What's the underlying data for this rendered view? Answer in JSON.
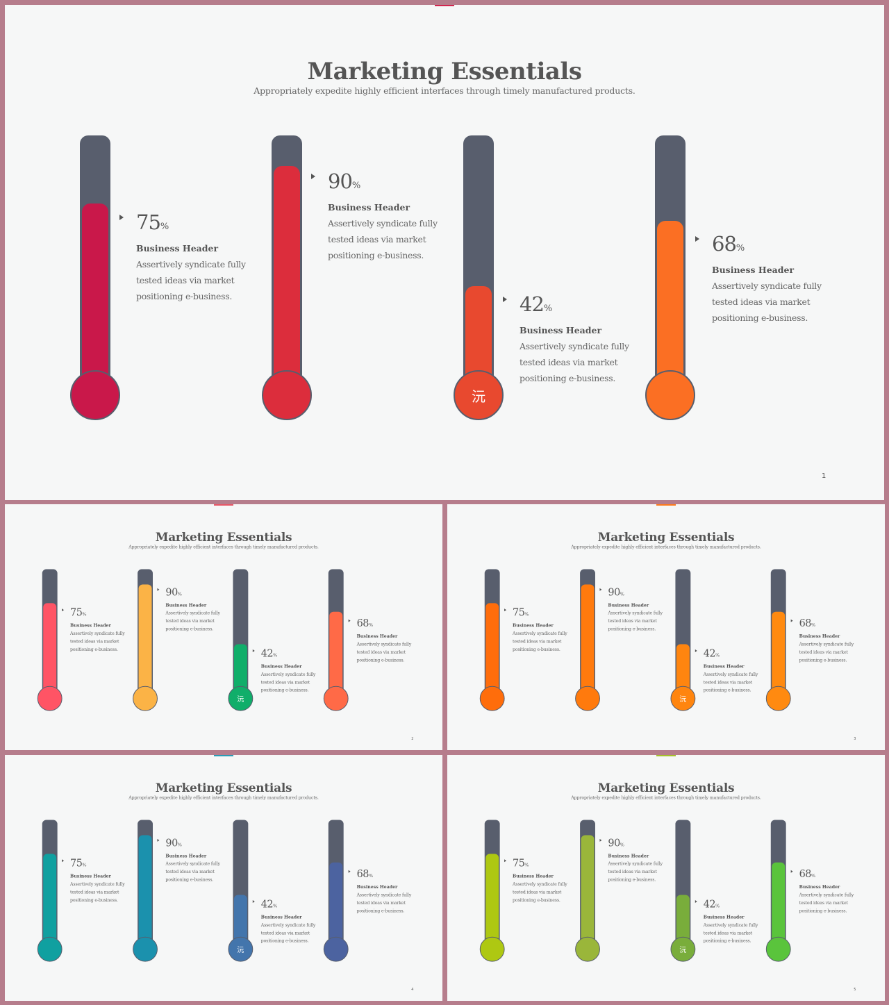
{
  "title": "Marketing Essentials",
  "subtitle": "Appropriately expedite highly efficient interfaces through timely manufactured products.",
  "items": [
    {
      "percent": "75",
      "unit": "%",
      "header": "Business Header",
      "description": "Assertively syndicate fully tested ideas via market positioning e-business.",
      "level": 0.75
    },
    {
      "percent": "90",
      "unit": "%",
      "header": "Business Header",
      "description": "Assertively syndicate fully tested ideas via market positioning e-business.",
      "level": 0.9
    },
    {
      "percent": "42",
      "unit": "%",
      "header": "Business Header",
      "description": "Assertively syndicate fully tested ideas via market positioning e-business.",
      "level": 0.42,
      "bulb_text": "沅"
    },
    {
      "percent": "68",
      "unit": "%",
      "header": "Business Header",
      "description": "Assertively syndicate fully tested ideas via market positioning e-business.",
      "level": 0.68
    }
  ],
  "slides": [
    {
      "page": "1",
      "accent": "#d3244e",
      "colors": [
        "#c9184a",
        "#dc2d3c",
        "#e8492f",
        "#fb6f23"
      ]
    },
    {
      "page": "2",
      "accent": "#e85565",
      "colors": [
        "#ff5465",
        "#fbb346",
        "#10ae6a",
        "#ff6a47"
      ]
    },
    {
      "page": "3",
      "accent": "#ff7a1a",
      "colors": [
        "#ff6d0b",
        "#ff7a0d",
        "#ff850f",
        "#ff8a10"
      ]
    },
    {
      "page": "4",
      "accent": "#2a9cb6",
      "colors": [
        "#10a0a0",
        "#1b91ad",
        "#4375ac",
        "#4c63a0"
      ]
    },
    {
      "page": "5",
      "accent": "#a6c12a",
      "colors": [
        "#aec812",
        "#9ab63a",
        "#79ad3b",
        "#5ac43c"
      ]
    }
  ],
  "colors": {
    "frame": "#b67d8c",
    "slide_bg": "#f6f7f7",
    "tube": "#585e6d",
    "text": "#555555"
  }
}
